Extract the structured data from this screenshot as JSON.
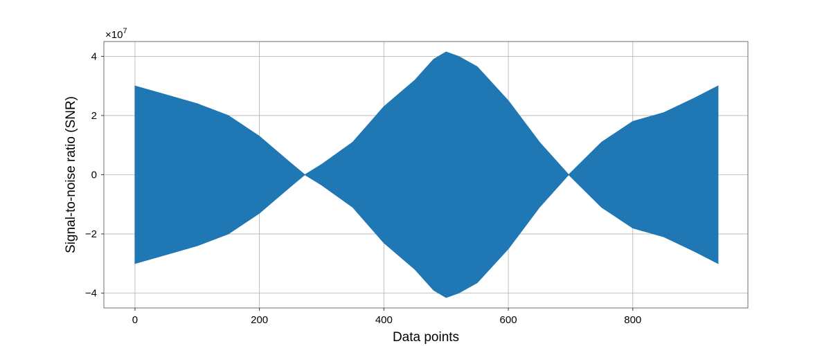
{
  "chart_data": {
    "type": "area",
    "title": "",
    "xlabel": "Data points",
    "ylabel": "Signal-to-noise ratio (SNR)",
    "y_offset_text": "×10^7",
    "y_offset_base": "×10",
    "y_offset_exp": "7",
    "xlim": [
      -50,
      985
    ],
    "ylim": [
      -45000000,
      45000000
    ],
    "grid": true,
    "x_ticks": [
      0,
      200,
      400,
      600,
      800
    ],
    "x_tick_labels": [
      "0",
      "200",
      "400",
      "600",
      "800"
    ],
    "y_ticks": [
      40000000,
      20000000,
      0,
      -20000000,
      -40000000
    ],
    "y_tick_labels": [
      "4",
      "2",
      "0",
      "−2",
      "−4"
    ],
    "color": "#1f77b4",
    "series": [
      {
        "description": "symmetric oscillating signal envelope (upper = +amplitude, lower = −amplitude)",
        "x": [
          0,
          50,
          100,
          150,
          200,
          250,
          273,
          300,
          350,
          400,
          450,
          480,
          500,
          520,
          550,
          600,
          650,
          697,
          750,
          800,
          850,
          900,
          937
        ],
        "amplitude": [
          30000000,
          27000000,
          24000000,
          20000000,
          13000000,
          4000000,
          0,
          3500000,
          11000000,
          23000000,
          32000000,
          39000000,
          41500000,
          40000000,
          36500000,
          25000000,
          11000000,
          0,
          11000000,
          18000000,
          21000000,
          26000000,
          30000000
        ]
      }
    ]
  }
}
